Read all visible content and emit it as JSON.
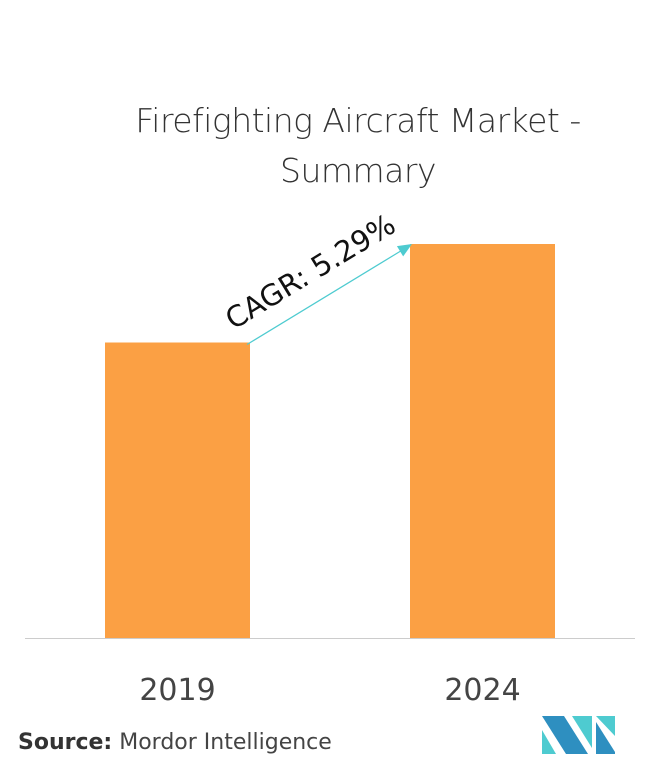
{
  "chart_data": {
    "type": "bar",
    "title": "Firefighting Aircraft Market - Summary",
    "categories": [
      "2019",
      "2024"
    ],
    "values": [
      75,
      100
    ],
    "xlabel": "",
    "ylabel": "",
    "ylim": [
      0,
      100
    ],
    "grid": false,
    "bar_color": "#FBA044",
    "annotation": {
      "text": "CAGR: 5.29%",
      "from": "2019",
      "to": "2024",
      "color": "#4ECBD0"
    }
  },
  "source": {
    "label": "Source:",
    "value": "Mordor Intelligence"
  },
  "logo": {
    "colors": [
      "#2E8FC0",
      "#4ECBD0"
    ]
  }
}
